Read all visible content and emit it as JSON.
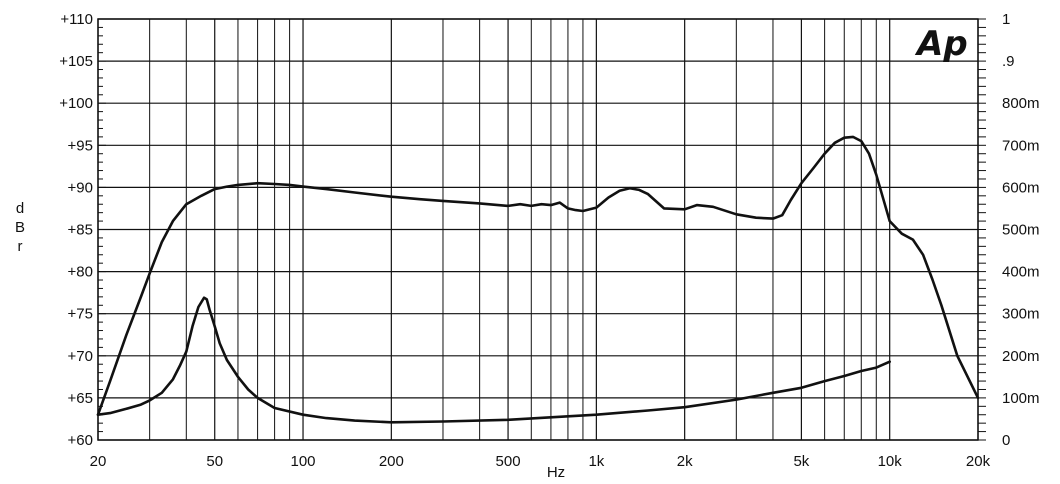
{
  "chart_data": {
    "type": "line",
    "title": "",
    "logo": "Ap",
    "xlabel": "Hz",
    "ylabel": "dBr",
    "y2label": "",
    "xscale": "log",
    "xlim": [
      20,
      20000
    ],
    "ylim": [
      60,
      110
    ],
    "y2lim": [
      0,
      1
    ],
    "grid": true,
    "x_tick_labels": [
      {
        "value": 20,
        "label": "20"
      },
      {
        "value": 50,
        "label": "50"
      },
      {
        "value": 100,
        "label": "100"
      },
      {
        "value": 200,
        "label": "200"
      },
      {
        "value": 500,
        "label": "500"
      },
      {
        "value": 1000,
        "label": "1k"
      },
      {
        "value": 2000,
        "label": "2k"
      },
      {
        "value": 5000,
        "label": "5k"
      },
      {
        "value": 10000,
        "label": "10k"
      },
      {
        "value": 20000,
        "label": "20k"
      }
    ],
    "y_tick_labels": [
      {
        "value": 60,
        "label": "+60"
      },
      {
        "value": 65,
        "label": "+65"
      },
      {
        "value": 70,
        "label": "+70"
      },
      {
        "value": 75,
        "label": "+75"
      },
      {
        "value": 80,
        "label": "+80"
      },
      {
        "value": 85,
        "label": "+85"
      },
      {
        "value": 90,
        "label": "+90"
      },
      {
        "value": 95,
        "label": "+95"
      },
      {
        "value": 100,
        "label": "+100"
      },
      {
        "value": 105,
        "label": "+105"
      },
      {
        "value": 110,
        "label": "+110"
      }
    ],
    "y2_tick_labels": [
      {
        "value": 0,
        "label": "0"
      },
      {
        "value": 0.1,
        "label": "100m"
      },
      {
        "value": 0.2,
        "label": "200m"
      },
      {
        "value": 0.3,
        "label": "300m"
      },
      {
        "value": 0.4,
        "label": "400m"
      },
      {
        "value": 0.5,
        "label": "500m"
      },
      {
        "value": 0.6,
        "label": "600m"
      },
      {
        "value": 0.7,
        "label": "700m"
      },
      {
        "value": 0.8,
        "label": "800m"
      },
      {
        "value": 0.9,
        "label": ".9"
      },
      {
        "value": 1.0,
        "label": "1"
      }
    ],
    "series": [
      {
        "axis": "left",
        "x": [
          20,
          22,
          25,
          28,
          30,
          33,
          36,
          40,
          45,
          50,
          55,
          60,
          70,
          80,
          90,
          100,
          120,
          150,
          200,
          250,
          300,
          400,
          500,
          550,
          600,
          650,
          700,
          750,
          800,
          850,
          900,
          1000,
          1100,
          1200,
          1300,
          1400,
          1500,
          1700,
          2000,
          2200,
          2500,
          3000,
          3500,
          4000,
          4300,
          4600,
          5000,
          5500,
          6000,
          6500,
          7000,
          7500,
          8000,
          8500,
          9000,
          10000,
          11000,
          12000,
          13000,
          14000,
          15000,
          17000,
          20000
        ],
        "y": [
          63,
          67,
          72.5,
          77,
          79.8,
          83.5,
          86,
          88,
          89,
          89.8,
          90.1,
          90.3,
          90.5,
          90.4,
          90.3,
          90.1,
          89.8,
          89.4,
          88.9,
          88.6,
          88.4,
          88.1,
          87.8,
          88.0,
          87.8,
          88.0,
          87.9,
          88.2,
          87.5,
          87.3,
          87.2,
          87.6,
          88.8,
          89.6,
          89.9,
          89.7,
          89.2,
          87.5,
          87.4,
          87.9,
          87.7,
          86.8,
          86.4,
          86.3,
          86.7,
          88.5,
          90.5,
          92.3,
          94.0,
          95.3,
          95.9,
          96.0,
          95.5,
          94.0,
          91.5,
          86.0,
          84.5,
          83.8,
          82.0,
          79.0,
          76.0,
          70.0,
          65.0
        ]
      },
      {
        "axis": "left",
        "x": [
          20,
          22,
          25,
          28,
          30,
          33,
          36,
          38,
          40,
          42,
          44,
          46,
          47,
          48,
          50,
          52,
          55,
          60,
          65,
          70,
          80,
          100,
          120,
          150,
          200,
          300,
          500,
          700,
          1000,
          1500,
          2000,
          3000,
          4000,
          5000,
          6000,
          7000,
          8000,
          9000,
          10000
        ],
        "y": [
          63,
          63.2,
          63.7,
          64.2,
          64.7,
          65.6,
          67.2,
          68.8,
          70.5,
          73.5,
          75.8,
          76.9,
          76.7,
          75.5,
          73.5,
          71.5,
          69.5,
          67.5,
          66.0,
          65.0,
          63.8,
          63.0,
          62.6,
          62.3,
          62.1,
          62.2,
          62.4,
          62.7,
          63.0,
          63.5,
          63.9,
          64.8,
          65.6,
          66.2,
          67.0,
          67.6,
          68.2,
          68.6,
          69.3
        ]
      }
    ]
  }
}
